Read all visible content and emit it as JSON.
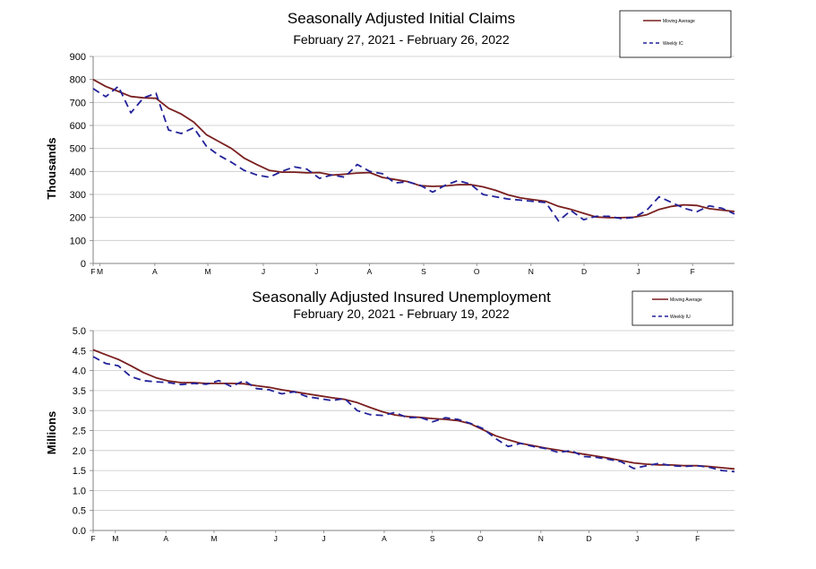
{
  "colors": {
    "moving_average": "#7a1f1f",
    "weekly": "#22229a",
    "grid": "#c8c8c8",
    "axis": "#808080"
  },
  "chart_data": [
    {
      "type": "line",
      "title": "Seasonally Adjusted Initial Claims",
      "subtitle": "February 27, 2021 - February 26, 2022",
      "ylabel": "Thousands",
      "ylim": [
        0,
        900
      ],
      "yticks": [
        "0",
        "100",
        "200",
        "300",
        "400",
        "500",
        "600",
        "700",
        "800",
        "900"
      ],
      "xticks": [
        {
          "label": "F",
          "week": 0
        },
        {
          "label": "M",
          "week": 0.55
        },
        {
          "label": "A",
          "week": 5
        },
        {
          "label": "M",
          "week": 9.3
        },
        {
          "label": "J",
          "week": 13.8
        },
        {
          "label": "J",
          "week": 18.1
        },
        {
          "label": "A",
          "week": 22.4
        },
        {
          "label": "S",
          "week": 26.8
        },
        {
          "label": "O",
          "week": 31.1
        },
        {
          "label": "N",
          "week": 35.5
        },
        {
          "label": "D",
          "week": 39.8
        },
        {
          "label": "J",
          "week": 44.2
        },
        {
          "label": "F",
          "week": 48.6
        }
      ],
      "xmax": 52,
      "grid": true,
      "legend_placement": "top-right",
      "series": [
        {
          "name": "Moving Average",
          "style": "solid",
          "values": [
            800,
            770,
            748,
            726,
            720,
            718,
            675,
            650,
            615,
            560,
            530,
            500,
            458,
            430,
            405,
            397,
            397,
            394,
            395,
            384,
            388,
            393,
            395,
            374,
            365,
            356,
            338,
            335,
            337,
            342,
            343,
            333,
            318,
            298,
            285,
            277,
            270,
            248,
            235,
            218,
            202,
            199,
            199,
            201,
            211,
            235,
            248,
            255,
            252,
            238,
            232,
            226
          ]
        },
        {
          "name": "Weekly IC",
          "style": "dashed",
          "values": [
            760,
            725,
            770,
            655,
            720,
            740,
            580,
            565,
            590,
            510,
            470,
            440,
            405,
            385,
            375,
            400,
            420,
            410,
            370,
            385,
            375,
            430,
            400,
            390,
            350,
            355,
            340,
            310,
            340,
            360,
            345,
            300,
            290,
            280,
            275,
            270,
            265,
            185,
            230,
            190,
            205,
            205,
            195,
            200,
            230,
            290,
            265,
            240,
            225,
            250,
            240,
            215
          ]
        }
      ]
    },
    {
      "type": "line",
      "title": "Seasonally Adjusted Insured Unemployment",
      "subtitle": "February 20, 2021 - February 19, 2022",
      "ylabel": "Millions",
      "ylim": [
        0,
        5
      ],
      "yticks": [
        "0.0",
        "0.5",
        "1.0",
        "1.5",
        "2.0",
        "2.5",
        "3.0",
        "3.5",
        "4.0",
        "4.5",
        "5.0"
      ],
      "xticks": [
        {
          "label": "F",
          "week": 0
        },
        {
          "label": "M",
          "week": 1.8
        },
        {
          "label": "A",
          "week": 5.9
        },
        {
          "label": "M",
          "week": 9.8
        },
        {
          "label": "J",
          "week": 14.8
        },
        {
          "label": "J",
          "week": 18.7
        },
        {
          "label": "A",
          "week": 23.6
        },
        {
          "label": "S",
          "week": 27.5
        },
        {
          "label": "O",
          "week": 31.4
        },
        {
          "label": "N",
          "week": 36.3
        },
        {
          "label": "D",
          "week": 40.2
        },
        {
          "label": "J",
          "week": 44.1
        },
        {
          "label": "F",
          "week": 49
        }
      ],
      "xmax": 52,
      "grid": true,
      "legend_placement": "top-right",
      "series": [
        {
          "name": "Moving Average",
          "style": "solid",
          "values": [
            4.52,
            4.4,
            4.28,
            4.12,
            3.95,
            3.82,
            3.74,
            3.7,
            3.7,
            3.68,
            3.68,
            3.68,
            3.67,
            3.62,
            3.58,
            3.52,
            3.47,
            3.42,
            3.37,
            3.32,
            3.28,
            3.2,
            3.08,
            2.97,
            2.89,
            2.85,
            2.83,
            2.8,
            2.78,
            2.75,
            2.67,
            2.52,
            2.37,
            2.27,
            2.18,
            2.12,
            2.06,
            2.01,
            1.96,
            1.91,
            1.86,
            1.81,
            1.75,
            1.69,
            1.66,
            1.64,
            1.64,
            1.62,
            1.62,
            1.6,
            1.57,
            1.54
          ]
        },
        {
          "name": "Weekly IU",
          "style": "dashed",
          "values": [
            4.35,
            4.18,
            4.12,
            3.85,
            3.75,
            3.72,
            3.7,
            3.65,
            3.68,
            3.66,
            3.75,
            3.6,
            3.75,
            3.55,
            3.52,
            3.42,
            3.47,
            3.35,
            3.3,
            3.25,
            3.3,
            3.0,
            2.9,
            2.88,
            2.95,
            2.82,
            2.83,
            2.72,
            2.82,
            2.78,
            2.68,
            2.55,
            2.3,
            2.1,
            2.18,
            2.1,
            2.05,
            1.95,
            2.0,
            1.85,
            1.83,
            1.78,
            1.72,
            1.55,
            1.62,
            1.68,
            1.62,
            1.6,
            1.62,
            1.58,
            1.5,
            1.47
          ]
        }
      ]
    }
  ]
}
